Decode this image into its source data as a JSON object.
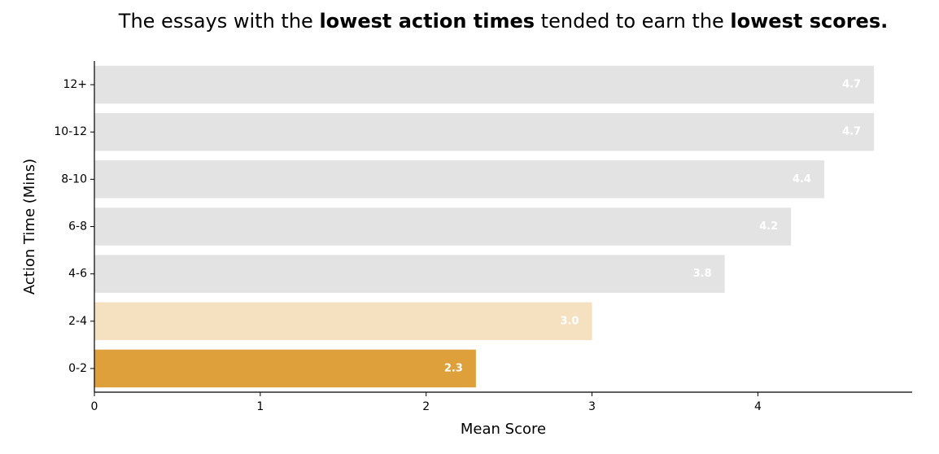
{
  "title": {
    "part1": "The essays with the ",
    "bold1": "lowest action times",
    "part2": " tended to earn the ",
    "bold2": "lowest scores."
  },
  "chart_data": {
    "type": "bar",
    "orientation": "horizontal",
    "title": "The essays with the lowest action times tended to earn the lowest scores.",
    "xlabel": "Mean Score",
    "ylabel": "Action Time (Mins)",
    "xlim": [
      0,
      4.93
    ],
    "xticks": [
      0,
      1,
      2,
      3,
      4
    ],
    "categories": [
      "12+",
      "10-12",
      "8-10",
      "6-8",
      "4-6",
      "2-4",
      "0-2"
    ],
    "values": [
      4.7,
      4.7,
      4.4,
      4.2,
      3.8,
      3.0,
      2.3
    ],
    "value_labels": [
      "4.7",
      "4.7",
      "4.4",
      "4.2",
      "3.8",
      "3.0",
      "2.3"
    ],
    "colors": [
      "#e3e3e3",
      "#e3e3e3",
      "#e3e3e3",
      "#e3e3e3",
      "#e3e3e3",
      "#f5e0c0",
      "#dda03a"
    ],
    "grid": false
  }
}
